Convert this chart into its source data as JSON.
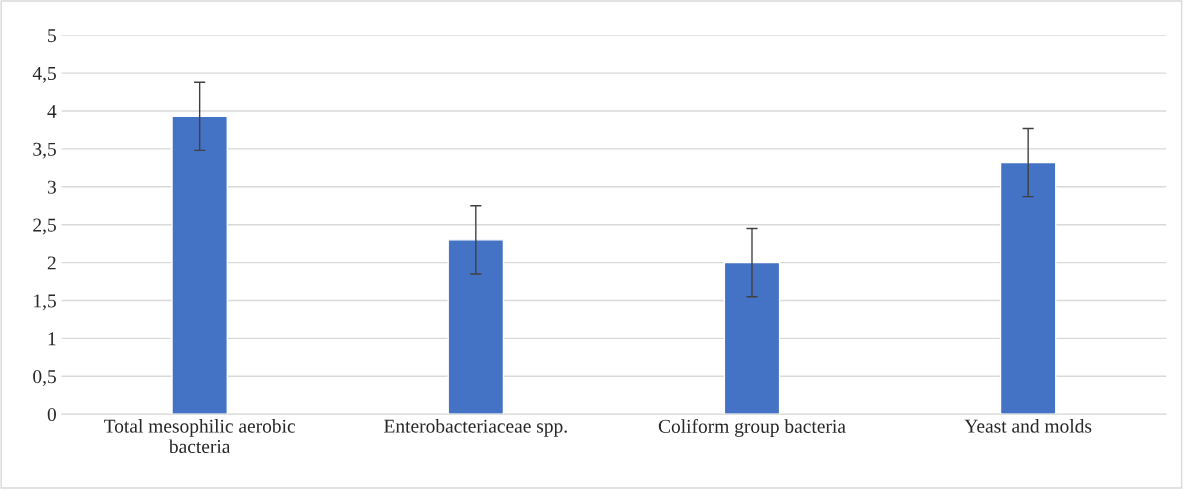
{
  "chart_data": {
    "type": "bar",
    "categories": [
      "Total mesophilic aerobic bacteria",
      "Enterobacteriaceae spp.",
      "Coliform group bacteria",
      "Yeast and molds"
    ],
    "values": [
      3.93,
      2.3,
      2.0,
      3.32
    ],
    "errors": [
      0.45,
      0.45,
      0.45,
      0.45
    ],
    "color": "#4472c4",
    "ylim": [
      0,
      5
    ],
    "yticks": [
      0,
      {
        "value": 0.5,
        "label": "0,5"
      },
      1,
      {
        "value": 1.5,
        "label": "1,5"
      },
      2,
      {
        "value": 2.5,
        "label": "2,5"
      },
      3,
      {
        "value": 3.5,
        "label": "3,5"
      },
      4,
      {
        "value": 4.5,
        "label": "4,5"
      },
      5
    ],
    "grid": "y"
  }
}
